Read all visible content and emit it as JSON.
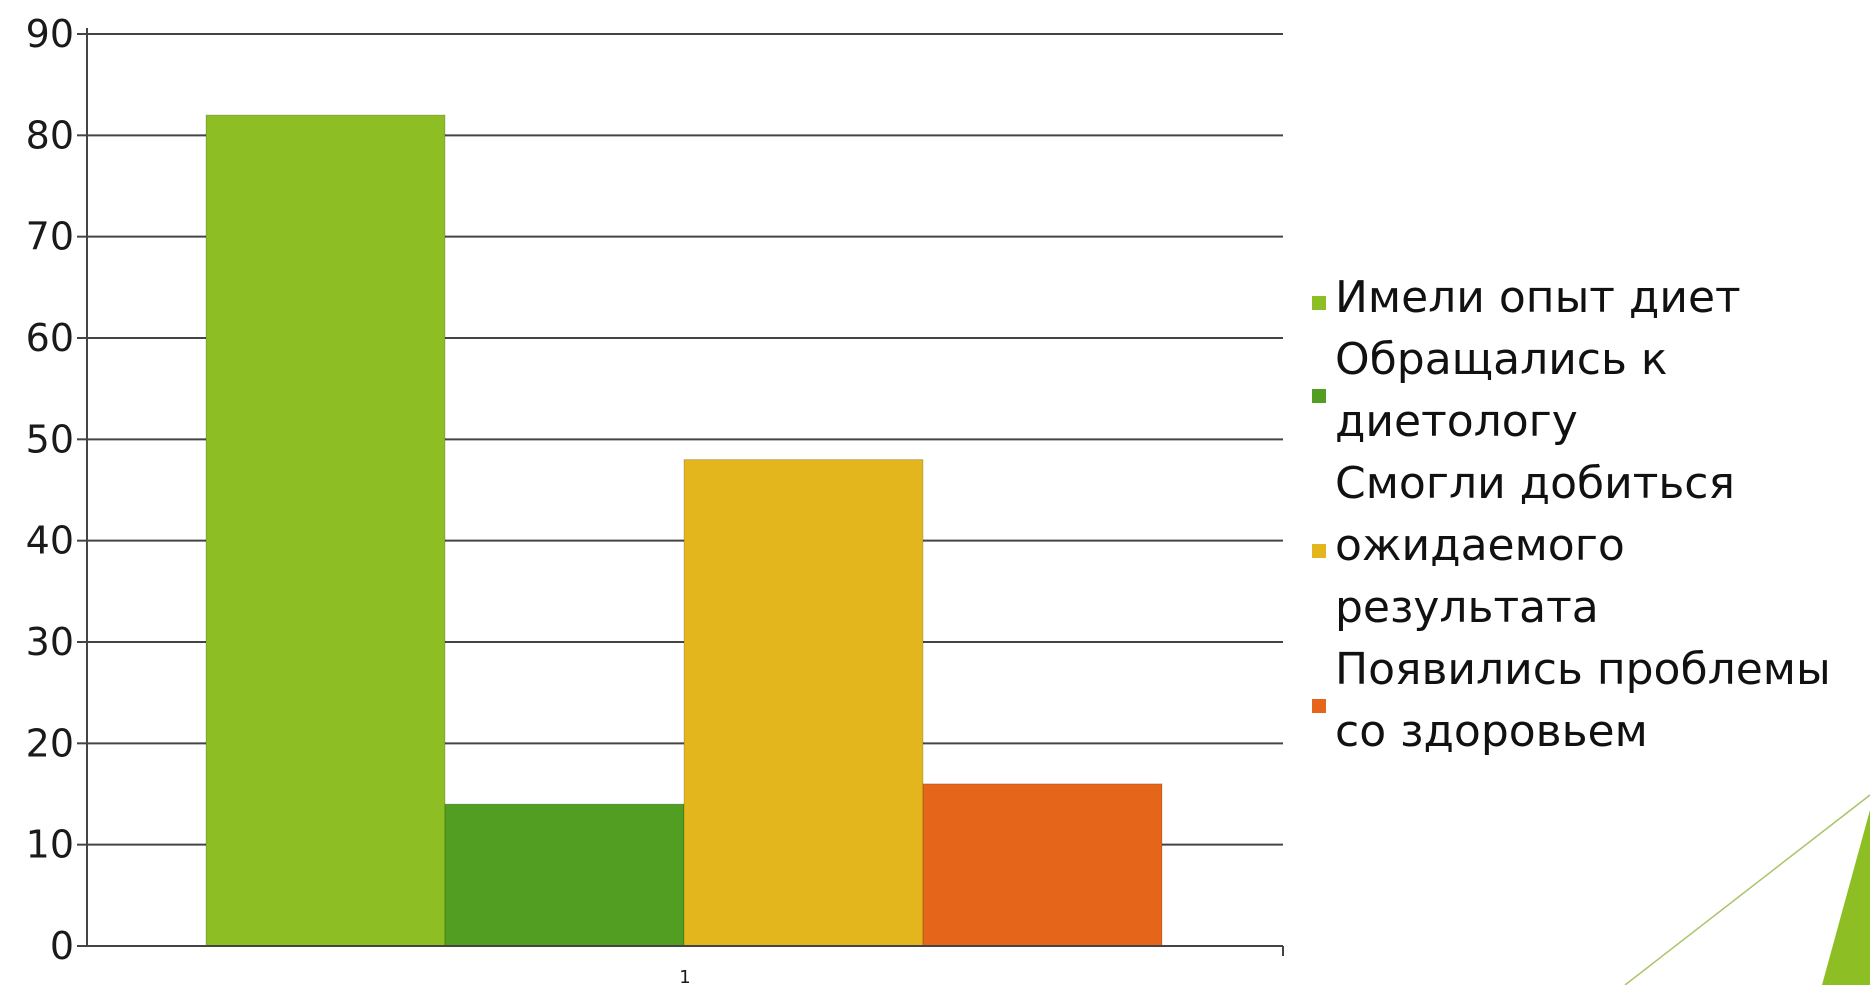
{
  "chart_data": {
    "type": "bar",
    "categories": [
      "1"
    ],
    "series": [
      {
        "name": "Имели опыт диет",
        "values": [
          82
        ],
        "color": "#8dbf25",
        "legend_lines": [
          "Имели опыт диет"
        ]
      },
      {
        "name": "Обращались к диетологу",
        "values": [
          14
        ],
        "color": "#529e22",
        "legend_lines": [
          "Обращались к",
          "диетологу"
        ]
      },
      {
        "name": "Смогли добиться ожидаемого результата",
        "values": [
          48
        ],
        "color": "#e4b61e",
        "legend_lines": [
          "Смогли добиться",
          "ожидаемого",
          "результата"
        ]
      },
      {
        "name": "Появились проблемы со здоровьем",
        "values": [
          16
        ],
        "color": "#e5661b",
        "legend_lines": [
          "Появились проблемы",
          "со здоровьем"
        ]
      }
    ],
    "y_ticks": [
      "0",
      "10",
      "20",
      "30",
      "40",
      "50",
      "60",
      "70",
      "80",
      "90"
    ],
    "ylim": [
      0,
      90
    ],
    "grid": true,
    "legend_position": "right"
  },
  "decor": {
    "accent_color": "#8dbf25",
    "line_color": "#a9c46a"
  }
}
